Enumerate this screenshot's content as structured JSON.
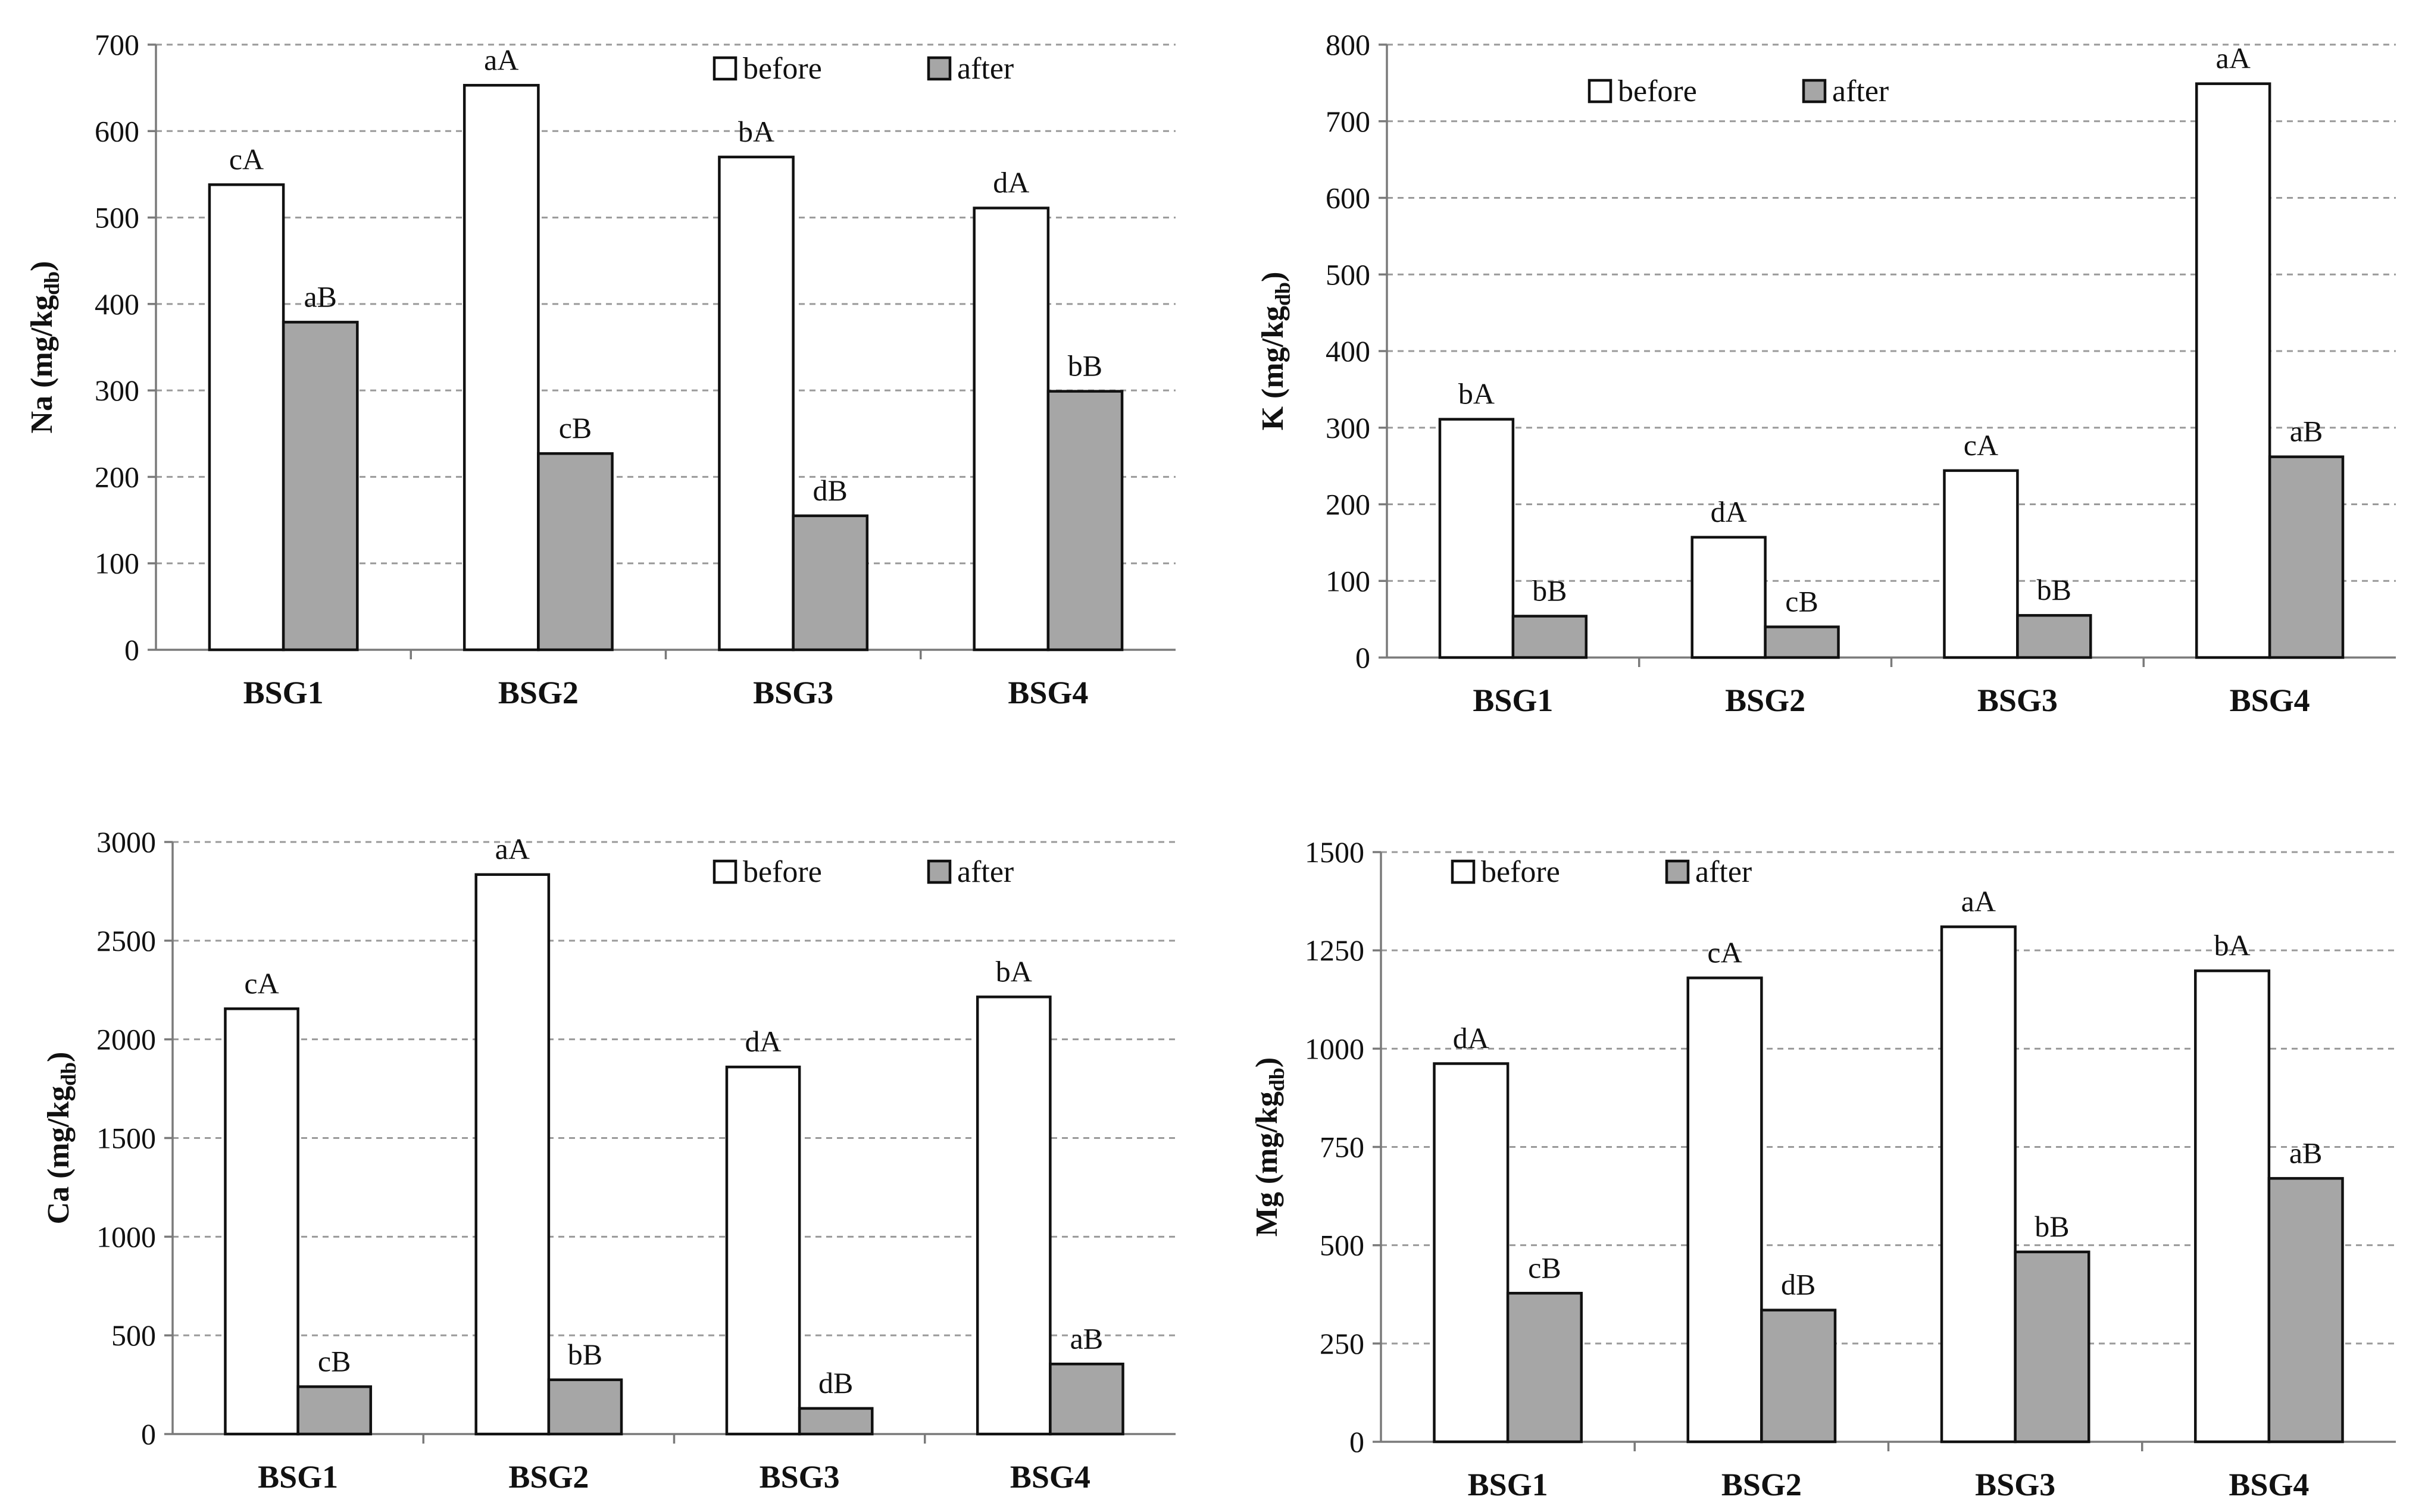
{
  "colors": {
    "before": "#ffffff",
    "after": "#a6a6a6",
    "outline": "#111111",
    "grid": "#9a9a9a"
  },
  "chart_data": [
    {
      "type": "bar",
      "element": "Na",
      "ylabel": "Na (mg/kg",
      "ylabel_sub": "db",
      "ylabel_close": ")",
      "categories": [
        "BSG1",
        "BSG2",
        "BSG3",
        "BSG4"
      ],
      "series": [
        {
          "name": "before",
          "values": [
            538,
            653,
            570,
            511
          ],
          "labels": [
            "cA",
            "aA",
            "bA",
            "dA"
          ]
        },
        {
          "name": "after",
          "values": [
            379,
            227,
            155,
            299
          ],
          "labels": [
            "aB",
            "cB",
            "dB",
            "bB"
          ]
        }
      ],
      "ylim": [
        0,
        700
      ],
      "yticks": [
        0,
        100,
        200,
        300,
        400,
        500,
        600,
        700
      ],
      "grid": true,
      "legend": "top-right"
    },
    {
      "type": "bar",
      "element": "K",
      "ylabel": "K (mg/kg",
      "ylabel_sub": "db",
      "ylabel_close": ")",
      "categories": [
        "BSG1",
        "BSG2",
        "BSG3",
        "BSG4"
      ],
      "series": [
        {
          "name": "before",
          "values": [
            311,
            157,
            244,
            749
          ],
          "labels": [
            "bA",
            "dA",
            "cA",
            "aA"
          ]
        },
        {
          "name": "after",
          "values": [
            54,
            40,
            55,
            262
          ],
          "labels": [
            "bB",
            "cB",
            "bB",
            "aB"
          ]
        }
      ],
      "ylim": [
        0,
        800
      ],
      "yticks": [
        0,
        100,
        200,
        300,
        400,
        500,
        600,
        700,
        800
      ],
      "grid": true,
      "legend": "top-center"
    },
    {
      "type": "bar",
      "element": "Ca",
      "ylabel": "Ca (mg/kg",
      "ylabel_sub": "db",
      "ylabel_close": ")",
      "categories": [
        "BSG1",
        "BSG2",
        "BSG3",
        "BSG4"
      ],
      "series": [
        {
          "name": "before",
          "values": [
            2155,
            2835,
            1860,
            2215
          ],
          "labels": [
            "cA",
            "aA",
            "dA",
            "bA"
          ]
        },
        {
          "name": "after",
          "values": [
            240,
            275,
            130,
            355
          ],
          "labels": [
            "cB",
            "bB",
            "dB",
            "aB"
          ]
        }
      ],
      "ylim": [
        0,
        3000
      ],
      "yticks": [
        0,
        500,
        1000,
        1500,
        2000,
        2500,
        3000
      ],
      "grid": true,
      "legend": "top-right"
    },
    {
      "type": "bar",
      "element": "Mg",
      "ylabel": "Mg (mg/kg",
      "ylabel_sub": "db",
      "ylabel_close": ")",
      "categories": [
        "BSG1",
        "BSG2",
        "BSG3",
        "BSG4"
      ],
      "series": [
        {
          "name": "before",
          "values": [
            962,
            1180,
            1310,
            1198
          ],
          "labels": [
            "dA",
            "cA",
            "aA",
            "bA"
          ]
        },
        {
          "name": "after",
          "values": [
            378,
            335,
            483,
            670
          ],
          "labels": [
            "cB",
            "dB",
            "bB",
            "aB"
          ]
        }
      ],
      "ylim": [
        0,
        1500
      ],
      "yticks": [
        0,
        250,
        500,
        750,
        1000,
        1250,
        1500
      ],
      "grid": true,
      "legend": "top-left"
    }
  ]
}
